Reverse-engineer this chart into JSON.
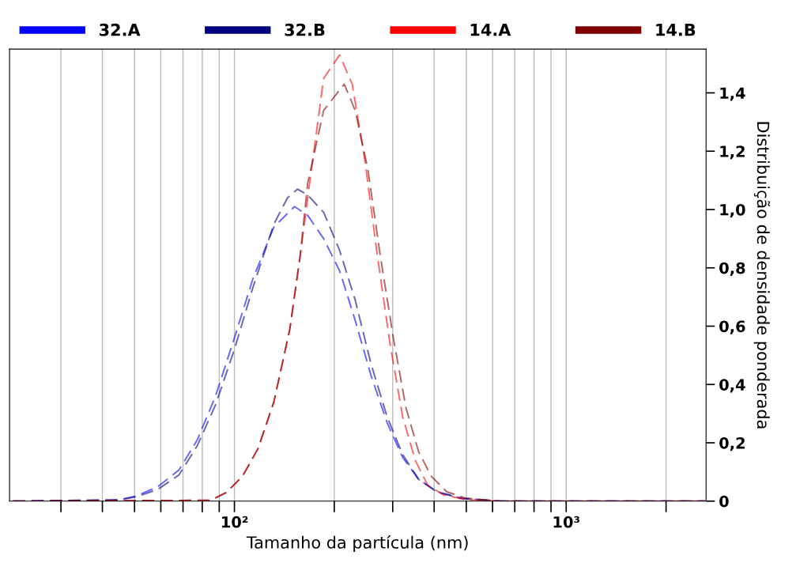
{
  "chart_data": {
    "type": "line",
    "xlabel": "Tamanho da partícula (nm)",
    "ylabel": "Distribuição de densidade ponderada",
    "log": "x",
    "xlim": [
      21,
      2640
    ],
    "ylim": [
      0,
      1.55
    ],
    "xticks": [
      {
        "value": 30,
        "label": null
      },
      {
        "value": 40,
        "label": null
      },
      {
        "value": 50,
        "label": null
      },
      {
        "value": 60,
        "label": null
      },
      {
        "value": 70,
        "label": null
      },
      {
        "value": 80,
        "label": null
      },
      {
        "value": 90,
        "label": null
      },
      {
        "value": 100,
        "label": "10²"
      },
      {
        "value": 200,
        "label": null
      },
      {
        "value": 300,
        "label": null
      },
      {
        "value": 400,
        "label": null
      },
      {
        "value": 500,
        "label": null
      },
      {
        "value": 600,
        "label": null
      },
      {
        "value": 700,
        "label": null
      },
      {
        "value": 800,
        "label": null
      },
      {
        "value": 900,
        "label": null
      },
      {
        "value": 1000,
        "label": "10³"
      },
      {
        "value": 2000,
        "label": null
      }
    ],
    "yticks": [
      {
        "value": 0,
        "label": "0"
      },
      {
        "value": 0.2,
        "label": "0,2"
      },
      {
        "value": 0.4,
        "label": "0,4"
      },
      {
        "value": 0.6,
        "label": "0,6"
      },
      {
        "value": 0.8,
        "label": "0,8"
      },
      {
        "value": 1.0,
        "label": "1,0"
      },
      {
        "value": 1.2,
        "label": "1,2"
      },
      {
        "value": 1.4,
        "label": "1,4"
      }
    ],
    "grid": "x",
    "legend": "top",
    "line_style": "dashed",
    "marker": "none",
    "series": [
      {
        "name": "32.A",
        "color": "#0000ff",
        "x": [
          21.5,
          44.7,
          50.7,
          58.7,
          68.1,
          77.3,
          87.7,
          100,
          113.5,
          131.5,
          151.7,
          166.3,
          185.8,
          207.5,
          231.2,
          258.2,
          288.4,
          321.4,
          358.9,
          409.3,
          487.5,
          631,
          2630
        ],
        "values": [
          0,
          0.004,
          0.018,
          0.049,
          0.107,
          0.21,
          0.36,
          0.56,
          0.76,
          0.94,
          1.01,
          0.98,
          0.9,
          0.79,
          0.62,
          0.43,
          0.27,
          0.15,
          0.075,
          0.032,
          0.009,
          0,
          0
        ]
      },
      {
        "name": "32.B",
        "color": "#000080",
        "x": [
          21.5,
          44.7,
          50.7,
          58.7,
          68.1,
          77.3,
          87.7,
          100,
          113.5,
          131.5,
          144.5,
          154.9,
          166.3,
          185.8,
          207.5,
          231.2,
          258.2,
          288.4,
          321.4,
          358.9,
          409.3,
          487.5,
          631,
          2630
        ],
        "values": [
          0,
          0.004,
          0.015,
          0.04,
          0.09,
          0.19,
          0.33,
          0.52,
          0.73,
          0.95,
          1.04,
          1.07,
          1.05,
          0.99,
          0.86,
          0.69,
          0.47,
          0.29,
          0.16,
          0.075,
          0.03,
          0.009,
          0,
          0
        ]
      },
      {
        "name": "14.A",
        "color": "#ff0000",
        "x": [
          21.5,
          84.9,
          94.6,
          105.7,
          117.8,
          131.5,
          146.9,
          157.8,
          169.4,
          185.8,
          207.5,
          226.5,
          247.2,
          269.8,
          294.4,
          321.4,
          350.8,
          382.8,
          427.6,
          498.9,
          631,
          2630
        ],
        "values": [
          0,
          0.003,
          0.03,
          0.085,
          0.18,
          0.34,
          0.59,
          0.84,
          1.11,
          1.45,
          1.53,
          1.43,
          1.17,
          0.84,
          0.54,
          0.29,
          0.14,
          0.054,
          0.021,
          0.005,
          0,
          0
        ]
      },
      {
        "name": "14.B",
        "color": "#800000",
        "x": [
          21.5,
          84.9,
          94.6,
          105.7,
          117.8,
          131.5,
          146.9,
          157.8,
          166.3,
          185.8,
          214.3,
          231.2,
          252.3,
          275.4,
          301.3,
          328.9,
          358.9,
          391.7,
          436.5,
          498.9,
          631,
          2630
        ],
        "values": [
          0,
          0.003,
          0.03,
          0.085,
          0.18,
          0.34,
          0.59,
          0.84,
          1.09,
          1.34,
          1.43,
          1.34,
          1.14,
          0.84,
          0.56,
          0.32,
          0.17,
          0.086,
          0.032,
          0.01,
          0,
          0
        ]
      }
    ]
  }
}
